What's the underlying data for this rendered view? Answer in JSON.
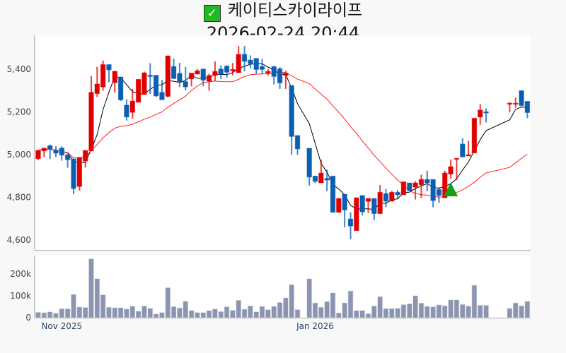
{
  "header": {
    "title": "케이티스카이라이프",
    "timestamp": "2026-02-24 20:44",
    "status_icon": "check-icon"
  },
  "colors": {
    "up": "#e00000",
    "down": "#0a5fb4",
    "ma5": "#000000",
    "ma20": "#ff2020",
    "volume": "#8c95b0",
    "signal": "#16a016"
  },
  "chart_data": [
    {
      "type": "candlestick",
      "title": "케이티스카이라이프",
      "ylim": [
        4554,
        5559
      ],
      "yticks": [
        {
          "v": 5400,
          "label": "5,400"
        },
        {
          "v": 5200,
          "label": "5,200"
        },
        {
          "v": 5000,
          "label": "5,000"
        },
        {
          "v": 4800,
          "label": "4,800"
        },
        {
          "v": 4600,
          "label": "4,600"
        }
      ],
      "xticks": [
        {
          "i": 4,
          "label": "Nov 2025"
        },
        {
          "i": 47,
          "label": "Jan 2026"
        }
      ],
      "moving_averages": [
        {
          "name": "MA5",
          "window": 5
        },
        {
          "name": "MA20",
          "window": 20
        }
      ],
      "signals": [
        {
          "i": 70,
          "type": "buy",
          "price": 4838
        }
      ],
      "ohlc": [
        [
          4981,
          5020,
          4975,
          5020
        ],
        [
          5018,
          5031,
          4989,
          5031
        ],
        [
          5042,
          5047,
          4979,
          5025
        ],
        [
          5020,
          5039,
          4989,
          5007
        ],
        [
          5031,
          5039,
          4972,
          4998
        ],
        [
          5000,
          5000,
          4939,
          4976
        ],
        [
          4981,
          4981,
          4814,
          4841
        ],
        [
          4851,
          4987,
          4832,
          4987
        ],
        [
          4970,
          5020,
          4939,
          5020
        ],
        [
          5017,
          5369,
          5017,
          5292
        ],
        [
          5286,
          5411,
          5270,
          5331
        ],
        [
          5317,
          5441,
          5299,
          5422
        ],
        [
          5422,
          5422,
          5339,
          5397
        ],
        [
          5337,
          5391,
          5290,
          5391
        ],
        [
          5364,
          5364,
          5251,
          5257
        ],
        [
          5232,
          5259,
          5160,
          5176
        ],
        [
          5198,
          5309,
          5169,
          5251
        ],
        [
          5245,
          5353,
          5245,
          5353
        ],
        [
          5282,
          5389,
          5282,
          5383
        ],
        [
          5372,
          5428,
          5284,
          5366
        ],
        [
          5372,
          5372,
          5270,
          5275
        ],
        [
          5292,
          5350,
          5257,
          5257
        ],
        [
          5273,
          5463,
          5268,
          5463
        ],
        [
          5413,
          5450,
          5356,
          5356
        ],
        [
          5381,
          5430,
          5317,
          5342
        ],
        [
          5342,
          5411,
          5301,
          5317
        ],
        [
          5355,
          5382,
          5320,
          5382
        ],
        [
          5377,
          5401,
          5377,
          5393
        ],
        [
          5401,
          5401,
          5320,
          5349
        ],
        [
          5344,
          5379,
          5300,
          5371
        ],
        [
          5371,
          5437,
          5344,
          5390
        ],
        [
          5401,
          5418,
          5355,
          5377
        ],
        [
          5415,
          5418,
          5360,
          5386
        ],
        [
          5393,
          5429,
          5371,
          5399
        ],
        [
          5384,
          5509,
          5384,
          5470
        ],
        [
          5470,
          5509,
          5390,
          5437
        ],
        [
          5443,
          5465,
          5404,
          5426
        ],
        [
          5451,
          5451,
          5379,
          5399
        ],
        [
          5413,
          5448,
          5377,
          5399
        ],
        [
          5382,
          5401,
          5371,
          5390
        ],
        [
          5413,
          5413,
          5329,
          5366
        ],
        [
          5402,
          5410,
          5308,
          5336
        ],
        [
          5371,
          5393,
          5308,
          5382
        ],
        [
          5324,
          5324,
          4999,
          5085
        ],
        [
          5090,
          5090,
          4999,
          5027
        ],
        null,
        [
          5030,
          5030,
          4855,
          4895
        ],
        [
          4900,
          4900,
          4868,
          4875
        ],
        [
          4868,
          4977,
          4868,
          4914
        ],
        [
          4889,
          4930,
          4829,
          4881
        ],
        [
          4900,
          4900,
          4730,
          4730
        ],
        [
          4730,
          4795,
          4730,
          4795
        ],
        [
          4815,
          4815,
          4660,
          4741
        ],
        [
          4699,
          4730,
          4605,
          4666
        ],
        [
          4644,
          4801,
          4644,
          4798
        ],
        [
          4809,
          4809,
          4715,
          4732
        ],
        [
          4781,
          4795,
          4727,
          4795
        ],
        [
          4795,
          4795,
          4694,
          4724
        ],
        [
          4724,
          4857,
          4724,
          4824
        ],
        [
          4818,
          4840,
          4754,
          4782
        ],
        [
          4782,
          4830,
          4782,
          4824
        ],
        [
          4824,
          4835,
          4793,
          4812
        ],
        [
          4812,
          4873,
          4812,
          4873
        ],
        [
          4868,
          4868,
          4831,
          4831
        ],
        [
          4848,
          4876,
          4790,
          4868
        ],
        [
          4859,
          4906,
          4798,
          4884
        ],
        [
          4884,
          4925,
          4829,
          4868
        ],
        [
          4884,
          4884,
          4754,
          4785
        ],
        [
          4837,
          4848,
          4774,
          4809
        ],
        [
          4798,
          4925,
          4798,
          4914
        ],
        [
          4909,
          4977,
          4888,
          4944
        ],
        [
          4979,
          4983,
          4881,
          4983
        ],
        [
          5050,
          5077,
          4989,
          4989
        ],
        [
          4994,
          5065,
          4994,
          5000
        ],
        [
          5008,
          5171,
          5008,
          5171
        ],
        [
          5176,
          5237,
          5140,
          5209
        ],
        [
          5201,
          5217,
          5151,
          5195
        ],
        null,
        null,
        null,
        [
          5237,
          5246,
          5198,
          5241
        ],
        [
          5237,
          5267,
          5220,
          5241
        ],
        [
          5300,
          5300,
          5220,
          5230
        ],
        [
          5250,
          5250,
          5171,
          5197
        ]
      ]
    },
    {
      "type": "bar",
      "name": "volume",
      "ylim": [
        0,
        285000
      ],
      "yticks": [
        {
          "v": 0,
          "label": "0"
        },
        {
          "v": 100000,
          "label": "100k"
        },
        {
          "v": 200000,
          "label": "200k"
        }
      ],
      "values": [
        25000,
        23000,
        27000,
        21000,
        41000,
        41000,
        107000,
        49000,
        47000,
        270000,
        179000,
        105000,
        48000,
        46000,
        46000,
        40000,
        53000,
        30000,
        54000,
        43000,
        17000,
        24000,
        138000,
        51000,
        45000,
        76000,
        33000,
        24000,
        24000,
        33000,
        40000,
        28000,
        50000,
        34000,
        80000,
        39000,
        54000,
        27000,
        52000,
        37000,
        52000,
        70000,
        91000,
        152000,
        37000,
        null,
        179000,
        68000,
        48000,
        74000,
        114000,
        22000,
        68000,
        123000,
        33000,
        33000,
        18000,
        54000,
        97000,
        42000,
        42000,
        43000,
        60000,
        64000,
        101000,
        67000,
        52000,
        50000,
        59000,
        55000,
        82000,
        82000,
        61000,
        53000,
        149000,
        57000,
        57000,
        null,
        null,
        null,
        43000,
        68000,
        55000,
        75000
      ]
    }
  ]
}
